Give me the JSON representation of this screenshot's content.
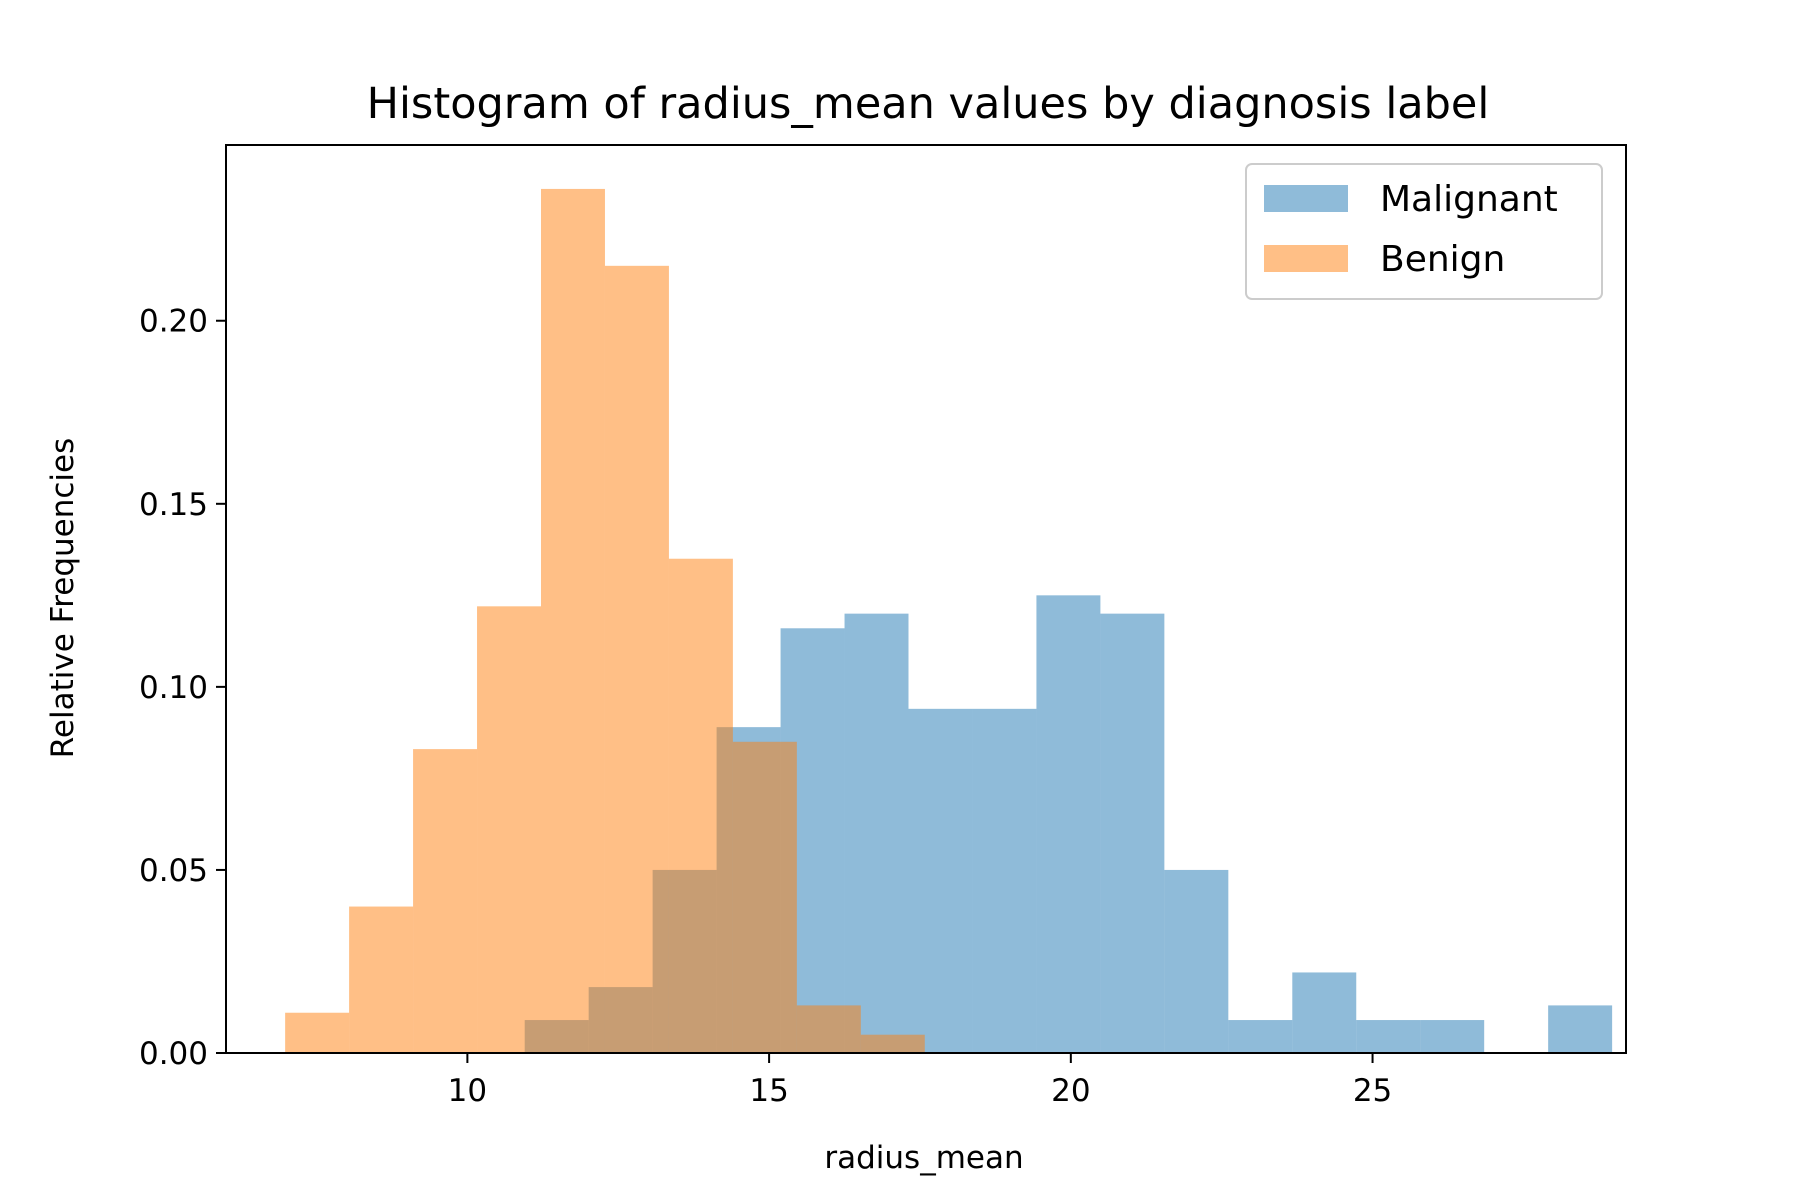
{
  "chart_data": {
    "type": "histogram",
    "title": "Histogram of radius_mean values by diagnosis label",
    "xlabel": "radius_mean",
    "ylabel": "Relative Frequencies",
    "xlim": [
      6.0,
      29.2
    ],
    "ylim": [
      0,
      0.248
    ],
    "xticks": [
      10,
      15,
      20,
      25
    ],
    "xtick_labels": [
      "10",
      "15",
      "20",
      "25"
    ],
    "yticks": [
      0.0,
      0.05,
      0.1,
      0.15,
      0.2
    ],
    "ytick_labels": [
      "0.00",
      "0.05",
      "0.10",
      "0.15",
      "0.20"
    ],
    "grid": false,
    "legend_position": "top-right",
    "series": [
      {
        "name": "Malignant",
        "color": "#1f77b4",
        "alpha": 0.5,
        "bin_edges": [
          10.95,
          12.01,
          13.07,
          14.13,
          15.19,
          16.25,
          17.31,
          18.37,
          19.43,
          20.49,
          21.55,
          22.61,
          23.67,
          24.73,
          25.79,
          26.85,
          27.91,
          28.97
        ],
        "values": [
          0.009,
          0.018,
          0.05,
          0.089,
          0.116,
          0.12,
          0.094,
          0.094,
          0.125,
          0.12,
          0.05,
          0.009,
          0.022,
          0.009,
          0.009,
          0.0,
          0.013
        ]
      },
      {
        "name": "Benign",
        "color": "#ff7f0e",
        "alpha": 0.5,
        "bin_edges": [
          6.98,
          8.04,
          9.1,
          10.16,
          11.22,
          12.28,
          13.34,
          14.4,
          15.46,
          16.52,
          17.58
        ],
        "values": [
          0.011,
          0.04,
          0.083,
          0.122,
          0.236,
          0.215,
          0.135,
          0.085,
          0.013,
          0.005
        ]
      }
    ]
  }
}
